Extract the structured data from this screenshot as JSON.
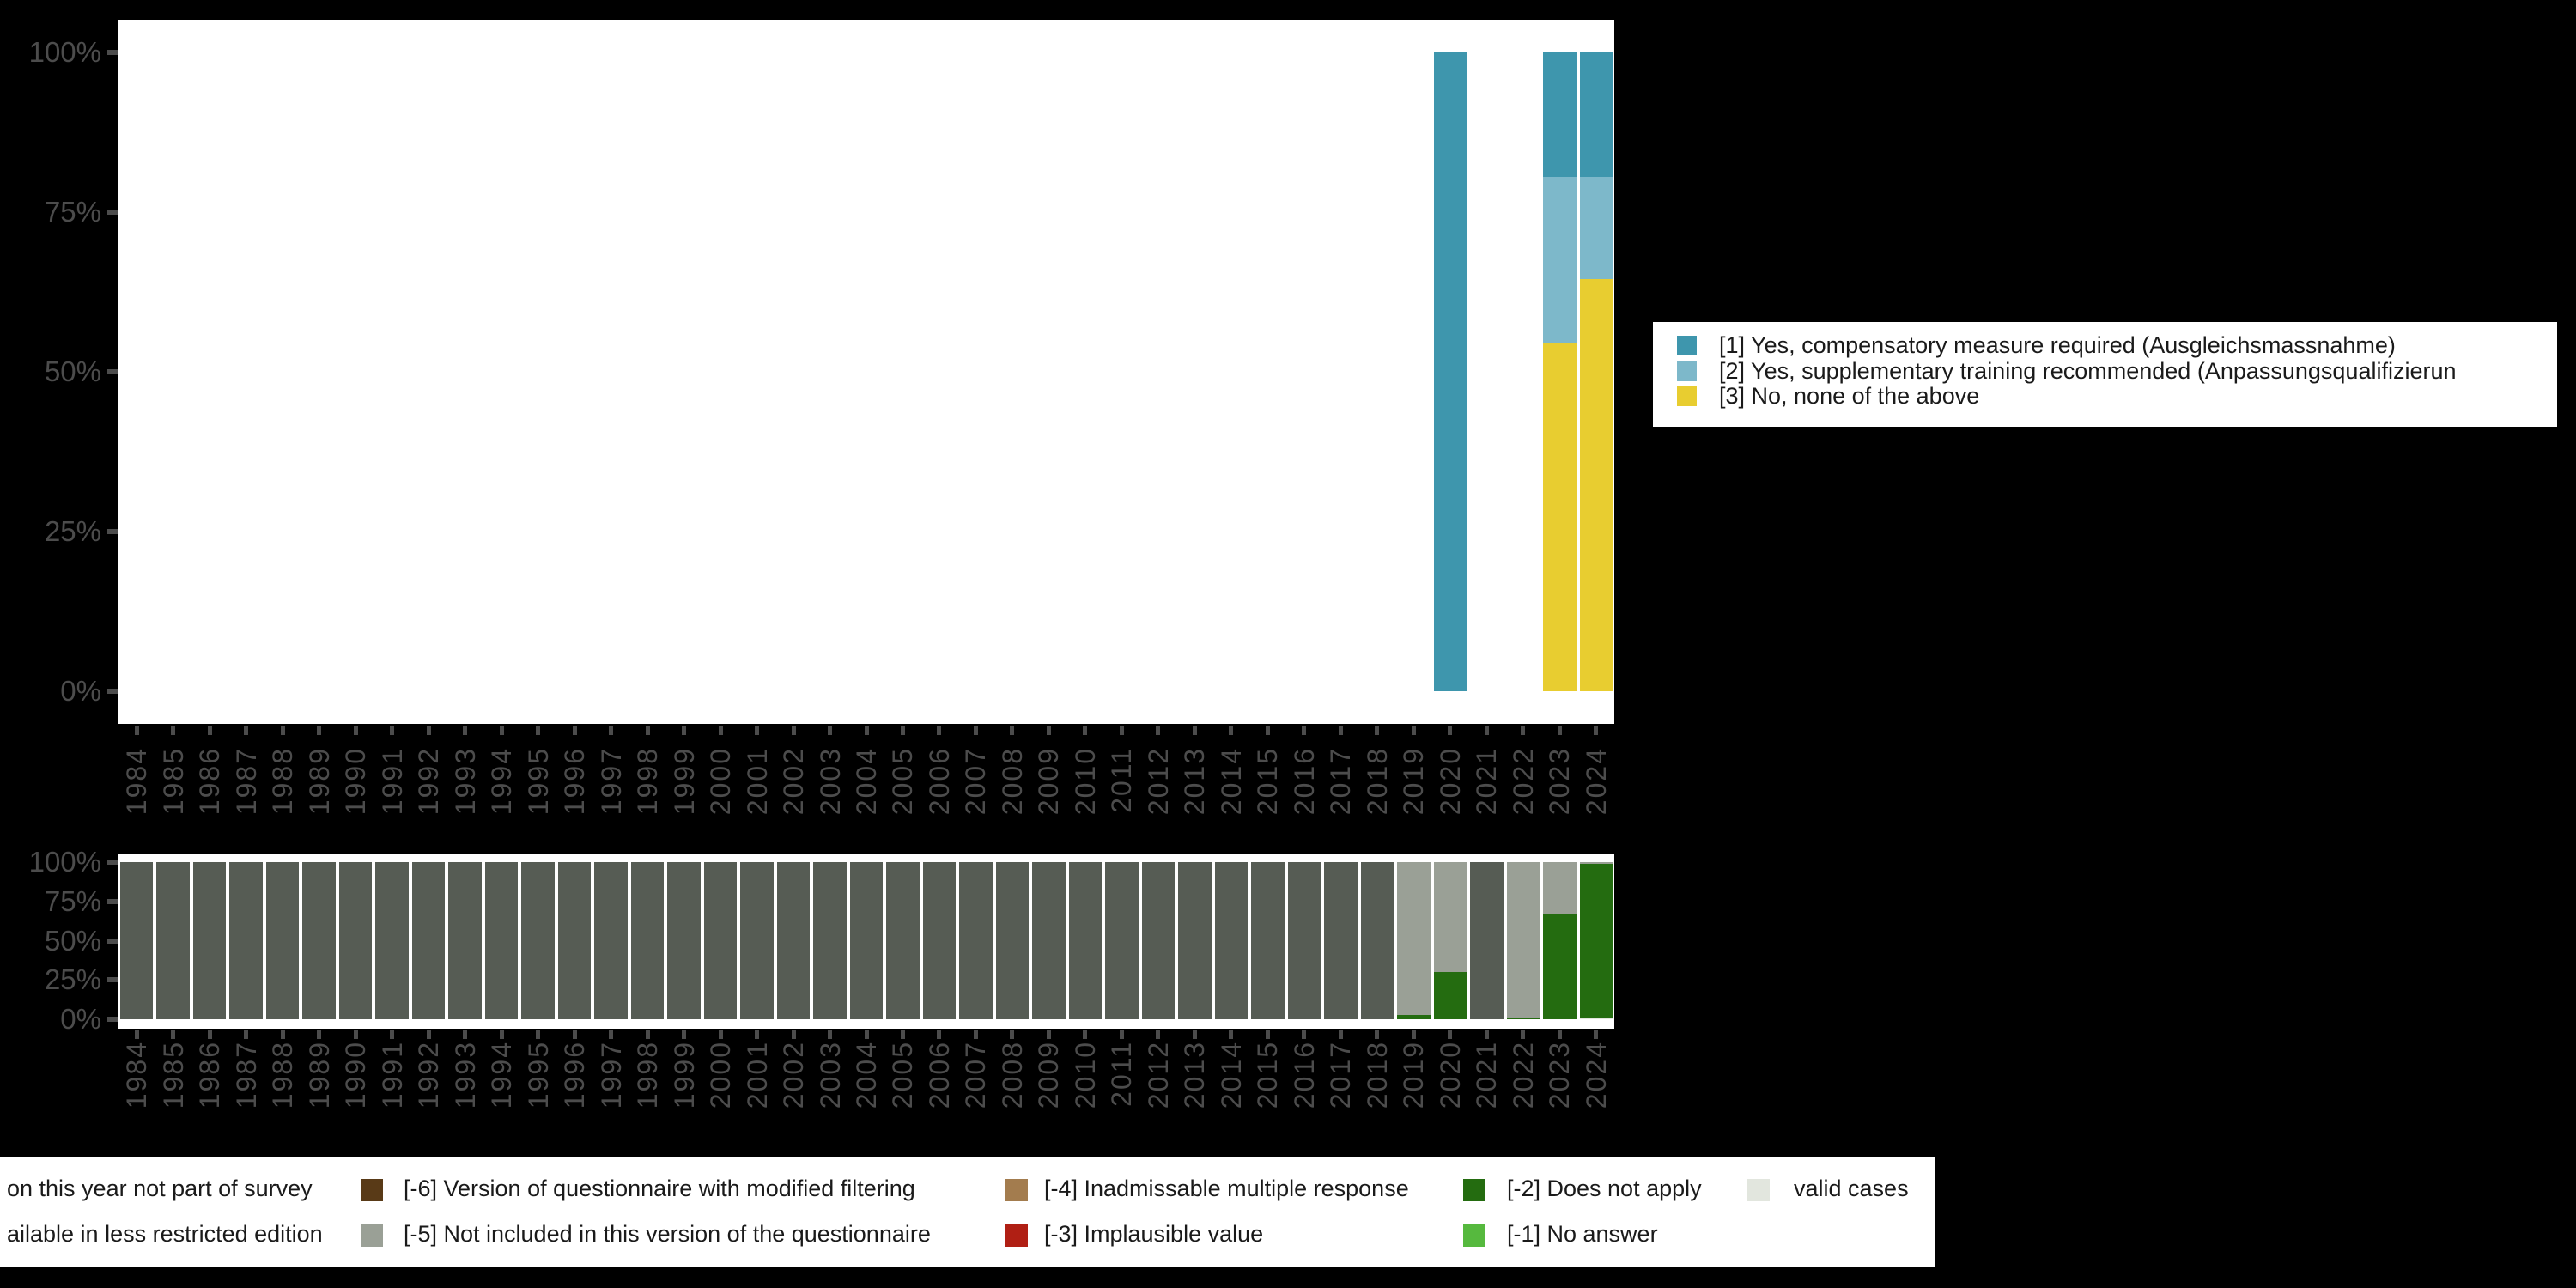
{
  "colors": {
    "s1": "#3E96AD",
    "s2": "#7DB8CA",
    "s3": "#E8CD30",
    "not_part": "#565C54",
    "not_included": "#9AA096",
    "does_not_apply": "#246C10",
    "no_answer": "#56B93E",
    "implausible": "#B01F14",
    "multiple_response": "#A37C4E",
    "modified_filtering": "#593A17",
    "valid": "#E2E6DE",
    "axis_text": "#4c4c4c",
    "panel": "#ffffff",
    "background": "#000000"
  },
  "top_legend": {
    "items": [
      {
        "key": "s1",
        "label": "[1] Yes, compensatory measure required (Ausgleichsmassnahme)"
      },
      {
        "key": "s2",
        "label": "[2] Yes, supplementary training recommended (Anpassungsqualifizierun"
      },
      {
        "key": "s3",
        "label": "[3] No, none of the above"
      }
    ]
  },
  "bottom_legend": {
    "row1": [
      {
        "key": null,
        "label": "on this year not part of survey"
      },
      {
        "key": "modified_filtering",
        "label": "[-6] Version of questionnaire with modified filtering"
      },
      {
        "key": "multiple_response",
        "label": "[-4] Inadmissable multiple response"
      },
      {
        "key": "does_not_apply",
        "label": "[-2] Does not apply"
      },
      {
        "key": "valid",
        "label": "valid cases"
      }
    ],
    "row2": [
      {
        "key": null,
        "label": "ailable in less restricted edition"
      },
      {
        "key": "not_included",
        "label": "[-5] Not included in this version of the questionnaire"
      },
      {
        "key": "implausible",
        "label": "[-3] Implausible value"
      },
      {
        "key": "no_answer",
        "label": "[-1] No answer"
      }
    ]
  },
  "chart_data": [
    {
      "type": "bar",
      "stacked": true,
      "unit": "percent",
      "title": "",
      "xlabel": "",
      "ylabel": "",
      "ylim": [
        0,
        100
      ],
      "grid": false,
      "legend_position": "right",
      "x": [
        "1984",
        "1985",
        "1986",
        "1987",
        "1988",
        "1989",
        "1990",
        "1991",
        "1992",
        "1993",
        "1994",
        "1995",
        "1996",
        "1997",
        "1998",
        "1999",
        "2000",
        "2001",
        "2002",
        "2003",
        "2004",
        "2005",
        "2006",
        "2007",
        "2008",
        "2009",
        "2010",
        "2011",
        "2012",
        "2013",
        "2014",
        "2015",
        "2016",
        "2017",
        "2018",
        "2019",
        "2020",
        "2021",
        "2022",
        "2023",
        "2024"
      ],
      "yticks": [
        {
          "label": "0%",
          "pct": 0
        },
        {
          "label": "25%",
          "pct": 25
        },
        {
          "label": "50%",
          "pct": 50
        },
        {
          "label": "75%",
          "pct": 75
        },
        {
          "label": "100%",
          "pct": 100
        }
      ],
      "stack_order": [
        "s3",
        "s2",
        "s1"
      ],
      "series": [
        {
          "key": "s1",
          "name": "[1] Yes, compensatory measure required (Ausgleichsmassnahme)",
          "values": {
            "2020": 100,
            "2023": 19.5,
            "2024": 19.5
          }
        },
        {
          "key": "s2",
          "name": "[2] Yes, supplementary training recommended (Anpassungsqualifizierun",
          "values": {
            "2023": 26,
            "2024": 16
          }
        },
        {
          "key": "s3",
          "name": "[3] No, none of the above",
          "values": {
            "2023": 54.5,
            "2024": 64.5
          }
        }
      ]
    },
    {
      "type": "bar",
      "stacked": true,
      "unit": "percent",
      "title": "",
      "xlabel": "",
      "ylabel": "",
      "ylim": [
        0,
        100
      ],
      "grid": false,
      "legend_position": "bottom",
      "x": [
        "1984",
        "1985",
        "1986",
        "1987",
        "1988",
        "1989",
        "1990",
        "1991",
        "1992",
        "1993",
        "1994",
        "1995",
        "1996",
        "1997",
        "1998",
        "1999",
        "2000",
        "2001",
        "2002",
        "2003",
        "2004",
        "2005",
        "2006",
        "2007",
        "2008",
        "2009",
        "2010",
        "2011",
        "2012",
        "2013",
        "2014",
        "2015",
        "2016",
        "2017",
        "2018",
        "2019",
        "2020",
        "2021",
        "2022",
        "2023",
        "2024"
      ],
      "yticks": [
        {
          "label": "0%",
          "pct": 0
        },
        {
          "label": "25%",
          "pct": 25
        },
        {
          "label": "50%",
          "pct": 50
        },
        {
          "label": "75%",
          "pct": 75
        },
        {
          "label": "100%",
          "pct": 100
        }
      ],
      "stack_order": [
        "valid",
        "does_not_apply",
        "not_included",
        "not_part"
      ],
      "series": [
        {
          "key": "not_part",
          "name": "on this year not part of survey",
          "values": {
            "1984": 100,
            "1985": 100,
            "1986": 100,
            "1987": 100,
            "1988": 100,
            "1989": 100,
            "1990": 100,
            "1991": 100,
            "1992": 100,
            "1993": 100,
            "1994": 100,
            "1995": 100,
            "1996": 100,
            "1997": 100,
            "1998": 100,
            "1999": 100,
            "2000": 100,
            "2001": 100,
            "2002": 100,
            "2003": 100,
            "2004": 100,
            "2005": 100,
            "2006": 100,
            "2007": 100,
            "2008": 100,
            "2009": 100,
            "2010": 100,
            "2011": 100,
            "2012": 100,
            "2013": 100,
            "2014": 100,
            "2015": 100,
            "2016": 100,
            "2017": 100,
            "2018": 100,
            "2021": 100
          }
        },
        {
          "key": "not_included",
          "name": "[-5] Not included in this version of the questionnaire",
          "values": {
            "2019": 97,
            "2020": 70,
            "2022": 99,
            "2023": 33,
            "2024": 1
          }
        },
        {
          "key": "does_not_apply",
          "name": "[-2] Does not apply",
          "values": {
            "2019": 3,
            "2020": 30,
            "2022": 1,
            "2023": 67,
            "2024": 98
          }
        },
        {
          "key": "valid",
          "name": "valid cases",
          "values": {
            "2024": 1
          }
        }
      ]
    }
  ]
}
